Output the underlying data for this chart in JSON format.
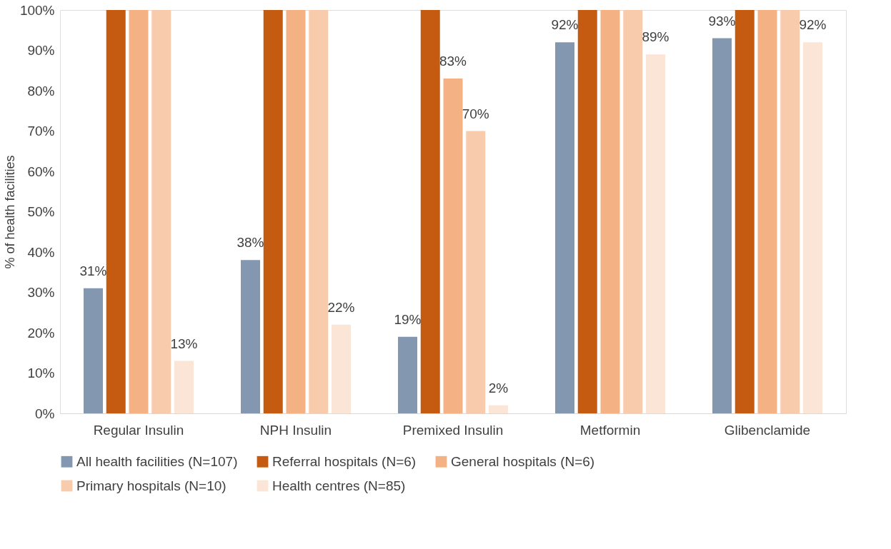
{
  "chart_data": {
    "type": "bar",
    "ylabel": "% of health facilities",
    "categories": [
      "Regular Insulin",
      "NPH Insulin",
      "Premixed Insulin",
      "Metformin",
      "Glibenclamide"
    ],
    "series": [
      {
        "name": "All health facilities (N=107)",
        "color": "#8497b0",
        "values": [
          31,
          38,
          19,
          92,
          93
        ],
        "value_labels": [
          "31%",
          "38%",
          "19%",
          "92%",
          "93%"
        ]
      },
      {
        "name": "Referral hospitals (N=6)",
        "color": "#c55a11",
        "values": [
          100,
          100,
          100,
          100,
          100
        ]
      },
      {
        "name": "General hospitals (N=6)",
        "color": "#f4b183",
        "values": [
          100,
          100,
          83,
          100,
          100
        ],
        "value_labels": [
          null,
          null,
          "83%",
          null,
          null
        ]
      },
      {
        "name": "Primary hospitals (N=10)",
        "color": "#f8cbad",
        "values": [
          100,
          100,
          70,
          100,
          100
        ],
        "value_labels": [
          null,
          null,
          "70%",
          null,
          null
        ]
      },
      {
        "name": "Health centres (N=85)",
        "color": "#fbe5d6",
        "values": [
          13,
          22,
          2,
          89,
          92
        ],
        "value_labels": [
          "13%",
          "22%",
          "2%",
          "89%",
          "92%"
        ]
      }
    ],
    "ylim": [
      0,
      100
    ],
    "yticks": [
      {
        "value": 0,
        "label": "0%"
      },
      {
        "value": 10,
        "label": "10%"
      },
      {
        "value": 20,
        "label": "20%"
      },
      {
        "value": 30,
        "label": "30%"
      },
      {
        "value": 40,
        "label": "40%"
      },
      {
        "value": 50,
        "label": "50%"
      },
      {
        "value": 60,
        "label": "60%"
      },
      {
        "value": 70,
        "label": "70%"
      },
      {
        "value": 80,
        "label": "80%"
      },
      {
        "value": 90,
        "label": "90%"
      },
      {
        "value": 100,
        "label": "100%"
      }
    ],
    "grid": false,
    "legend": "bottom"
  }
}
